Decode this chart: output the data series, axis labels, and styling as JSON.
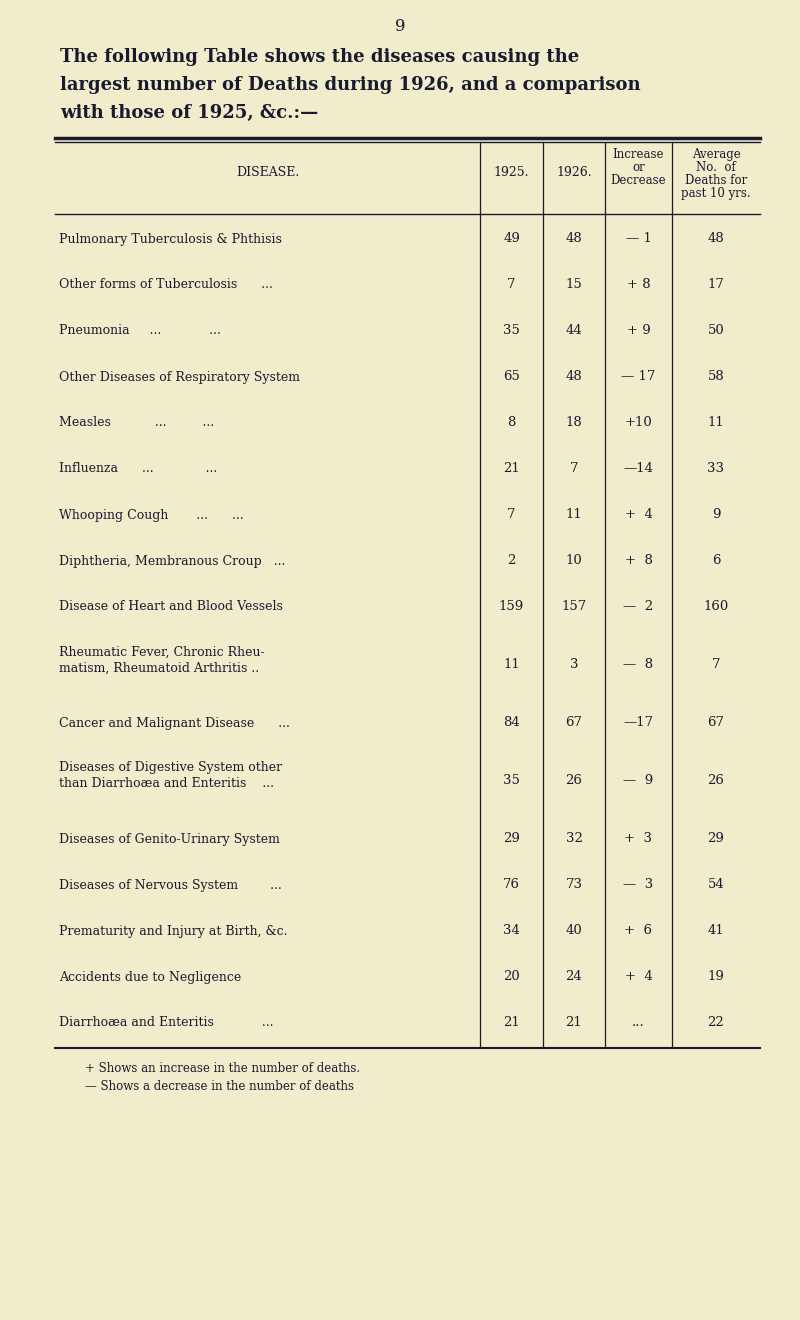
{
  "page_number": "9",
  "title_line1": "The following Table shows the diseases causing the",
  "title_line2": "largest number of Deaths during 1926, and a comparison",
  "title_line3": "with those of 1925, &c.:—",
  "col_header_disease": "DISEASE.",
  "col_header_1925": "1925.",
  "col_header_1926": "1926.",
  "col_header_increase_line1": "Increase",
  "col_header_increase_line2": "or",
  "col_header_increase_line3": "Decrease",
  "col_header_avg_line1": "Average",
  "col_header_avg_line2": "No.  of",
  "col_header_avg_line3": "Deaths for",
  "col_header_avg_line4": "past 10 yrs.",
  "rows": [
    {
      "disease1": "Pulmonary Tuberculosis & Phthisis",
      "disease2": "",
      "y1925": "49",
      "y1926": "48",
      "change": "— 1",
      "avg": "48"
    },
    {
      "disease1": "Other forms of Tuberculosis      ...",
      "disease2": "",
      "y1925": "7",
      "y1926": "15",
      "change": "+ 8",
      "avg": "17"
    },
    {
      "disease1": "Pneumonia     ...            ...",
      "disease2": "",
      "y1925": "35",
      "y1926": "44",
      "change": "+ 9",
      "avg": "50"
    },
    {
      "disease1": "Other Diseases of Respiratory System",
      "disease2": "",
      "y1925": "65",
      "y1926": "48",
      "change": "— 17",
      "avg": "58"
    },
    {
      "disease1": "Measles           ...         ...",
      "disease2": "",
      "y1925": "8",
      "y1926": "18",
      "change": "+10",
      "avg": "11"
    },
    {
      "disease1": "Influenza      ...             ...",
      "disease2": "",
      "y1925": "21",
      "y1926": "7",
      "change": "—14",
      "avg": "33"
    },
    {
      "disease1": "Whooping Cough       ...      ...",
      "disease2": "",
      "y1925": "7",
      "y1926": "11",
      "change": "+  4",
      "avg": "9"
    },
    {
      "disease1": "Diphtheria, Membranous Croup   ...",
      "disease2": "",
      "y1925": "2",
      "y1926": "10",
      "change": "+  8",
      "avg": "6"
    },
    {
      "disease1": "Disease of Heart and Blood Vessels",
      "disease2": "",
      "y1925": "159",
      "y1926": "157",
      "change": "—  2",
      "avg": "160"
    },
    {
      "disease1": "Rheumatic Fever, Chronic Rheu-",
      "disease2": "    matism, Rheumatoid Arthritis ..",
      "y1925": "11",
      "y1926": "3",
      "change": "—  8",
      "avg": "7"
    },
    {
      "disease1": "Cancer and Malignant Disease      ...",
      "disease2": "",
      "y1925": "84",
      "y1926": "67",
      "change": "—17",
      "avg": "67"
    },
    {
      "disease1": "Diseases of Digestive System other",
      "disease2": "    than Diarrhoæa and Enteritis    ...",
      "y1925": "35",
      "y1926": "26",
      "change": "—  9",
      "avg": "26"
    },
    {
      "disease1": "Diseases of Genito-Urinary System",
      "disease2": "",
      "y1925": "29",
      "y1926": "32",
      "change": "+  3",
      "avg": "29"
    },
    {
      "disease1": "Diseases of Nervous System        ...",
      "disease2": "",
      "y1925": "76",
      "y1926": "73",
      "change": "—  3",
      "avg": "54"
    },
    {
      "disease1": "Prematurity and Injury at Birth, &c.",
      "disease2": "",
      "y1925": "34",
      "y1926": "40",
      "change": "+  6",
      "avg": "41"
    },
    {
      "disease1": "Accidents due to Negligence",
      "disease2": "",
      "y1925": "20",
      "y1926": "24",
      "change": "+  4",
      "avg": "19"
    },
    {
      "disease1": "Diarrhoæa and Enteritis            ...",
      "disease2": "",
      "y1925": "21",
      "y1926": "21",
      "change": "...",
      "avg": "22"
    }
  ],
  "footnote1": "+ Shows an increase in the number of deaths.",
  "footnote2": "— Shows a decrease in the number of deaths",
  "bg_color": "#f0eccc",
  "text_color": "#1a1a2e"
}
